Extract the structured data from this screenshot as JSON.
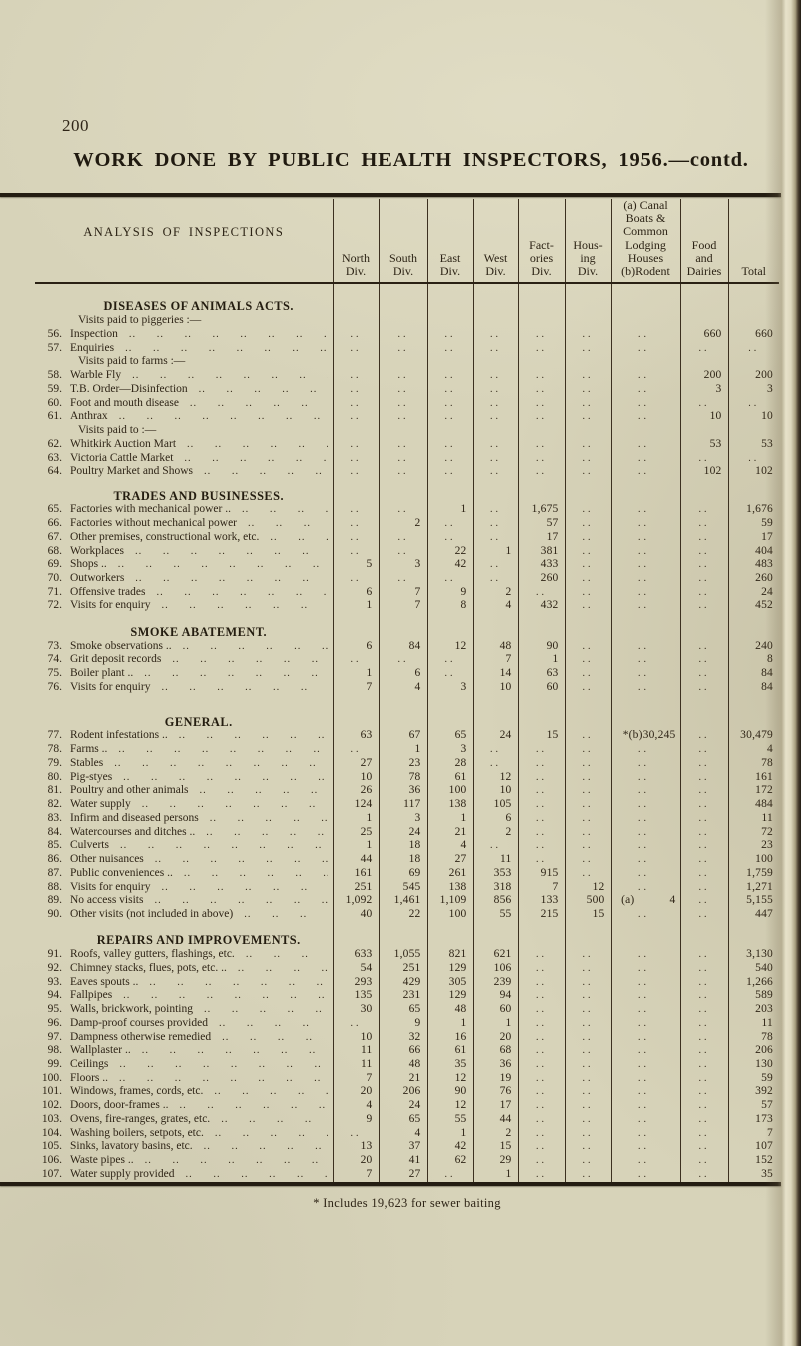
{
  "page": {
    "number": "200",
    "title": "WORK DONE BY PUBLIC HEALTH INSPECTORS, 1956.—contd.",
    "footnote": "* Includes 19,623 for sewer baiting"
  },
  "table": {
    "corner_label": "ANALYSIS OF INSPECTIONS",
    "columns": [
      "North\nDiv.",
      "South\nDiv.",
      "East\nDiv.",
      "West\nDiv.",
      "Fact-\nories\nDiv.",
      "Hous-\ning\nDiv.",
      "(a) Canal\nBoats &\nCommon\nLodging\nHouses\n(b)Rodent",
      "Food\nand\nDairies",
      "Total"
    ],
    "sections": [
      {
        "title": "DISEASES OF ANIMALS ACTS.",
        "rows": [
          {
            "type": "note",
            "label": "Visits paid to piggeries :—"
          },
          {
            "num": "56.",
            "label": "Inspection",
            "cells": [
              "..",
              "..",
              "..",
              "..",
              "..",
              "..",
              "..",
              "660",
              "660"
            ]
          },
          {
            "num": "57.",
            "label": "Enquiries",
            "cells": [
              "..",
              "..",
              "..",
              "..",
              "..",
              "..",
              "..",
              "..",
              ".."
            ]
          },
          {
            "type": "note",
            "label": "Visits paid to farms :—"
          },
          {
            "num": "58.",
            "label": "Warble Fly",
            "cells": [
              "..",
              "..",
              "..",
              "..",
              "..",
              "..",
              "..",
              "200",
              "200"
            ]
          },
          {
            "num": "59.",
            "label": "T.B. Order—Disinfection",
            "cells": [
              "..",
              "..",
              "..",
              "..",
              "..",
              "..",
              "..",
              "3",
              "3"
            ]
          },
          {
            "num": "60.",
            "label": "Foot and mouth disease",
            "cells": [
              "..",
              "..",
              "..",
              "..",
              "..",
              "..",
              "..",
              "..",
              ".."
            ]
          },
          {
            "num": "61.",
            "label": "Anthrax",
            "cells": [
              "..",
              "..",
              "..",
              "..",
              "..",
              "..",
              "..",
              "10",
              "10"
            ]
          },
          {
            "type": "note",
            "label": "Visits paid to :—"
          },
          {
            "num": "62.",
            "label": "Whitkirk Auction Mart",
            "cells": [
              "..",
              "..",
              "..",
              "..",
              "..",
              "..",
              "..",
              "53",
              "53"
            ]
          },
          {
            "num": "63.",
            "label": "Victoria Cattle Market",
            "cells": [
              "..",
              "..",
              "..",
              "..",
              "..",
              "..",
              "..",
              "..",
              ".."
            ]
          },
          {
            "num": "64.",
            "label": "Poultry Market and Shows",
            "cells": [
              "..",
              "..",
              "..",
              "..",
              "..",
              "..",
              "..",
              "102",
              "102"
            ]
          }
        ]
      },
      {
        "title": "TRADES AND BUSINESSES.",
        "rows": [
          {
            "num": "65.",
            "label": "Factories with mechanical power ..",
            "cells": [
              "..",
              "..",
              "1",
              "..",
              "1,675",
              "..",
              "..",
              "..",
              "1,676"
            ]
          },
          {
            "num": "66.",
            "label": "Factories without mechanical power",
            "cells": [
              "..",
              "2",
              "..",
              "..",
              "57",
              "..",
              "..",
              "..",
              "59"
            ]
          },
          {
            "num": "67.",
            "label": "Other premises, constructional work, etc.",
            "cells": [
              "..",
              "..",
              "..",
              "..",
              "17",
              "..",
              "..",
              "..",
              "17"
            ]
          },
          {
            "num": "68.",
            "label": "Workplaces",
            "cells": [
              "..",
              "..",
              "22",
              "1",
              "381",
              "..",
              "..",
              "..",
              "404"
            ]
          },
          {
            "num": "69.",
            "label": "Shops ..",
            "cells": [
              "5",
              "3",
              "42",
              "..",
              "433",
              "..",
              "..",
              "..",
              "483"
            ]
          },
          {
            "num": "70.",
            "label": "Outworkers",
            "cells": [
              "..",
              "..",
              "..",
              "..",
              "260",
              "..",
              "..",
              "..",
              "260"
            ]
          },
          {
            "num": "71.",
            "label": "Offensive trades",
            "cells": [
              "6",
              "7",
              "9",
              "2",
              "..",
              "..",
              "..",
              "..",
              "24"
            ]
          },
          {
            "num": "72.",
            "label": "Visits for enquiry",
            "cells": [
              "1",
              "7",
              "8",
              "4",
              "432",
              "..",
              "..",
              "..",
              "452"
            ]
          }
        ]
      },
      {
        "title": "SMOKE ABATEMENT.",
        "rows": [
          {
            "num": "73.",
            "label": "Smoke observations ..",
            "cells": [
              "6",
              "84",
              "12",
              "48",
              "90",
              "..",
              "..",
              "..",
              "240"
            ]
          },
          {
            "num": "74.",
            "label": "Grit deposit records",
            "cells": [
              "..",
              "..",
              "..",
              "7",
              "1",
              "..",
              "..",
              "..",
              "8"
            ]
          },
          {
            "num": "75.",
            "label": "Boiler plant ..",
            "cells": [
              "1",
              "6",
              "..",
              "14",
              "63",
              "..",
              "..",
              "..",
              "84"
            ]
          },
          {
            "num": "76.",
            "label": "Visits for enquiry",
            "cells": [
              "7",
              "4",
              "3",
              "10",
              "60",
              "..",
              "..",
              "..",
              "84"
            ]
          }
        ]
      },
      {
        "title": "GENERAL.",
        "rows": [
          {
            "num": "77.",
            "label": "Rodent infestations ..",
            "cells": [
              "63",
              "67",
              "65",
              "24",
              "15",
              "..",
              "*(b)30,245",
              "..",
              "30,479"
            ]
          },
          {
            "num": "78.",
            "label": "Farms ..",
            "cells": [
              "..",
              "1",
              "3",
              "..",
              "..",
              "..",
              "..",
              "..",
              "4"
            ]
          },
          {
            "num": "79.",
            "label": "Stables",
            "cells": [
              "27",
              "23",
              "28",
              "..",
              "..",
              "..",
              "..",
              "..",
              "78"
            ]
          },
          {
            "num": "80.",
            "label": "Pig-styes",
            "cells": [
              "10",
              "78",
              "61",
              "12",
              "..",
              "..",
              "..",
              "..",
              "161"
            ]
          },
          {
            "num": "81.",
            "label": "Poultry and other animals",
            "cells": [
              "26",
              "36",
              "100",
              "10",
              "..",
              "..",
              "..",
              "..",
              "172"
            ]
          },
          {
            "num": "82.",
            "label": "Water supply",
            "cells": [
              "124",
              "117",
              "138",
              "105",
              "..",
              "..",
              "..",
              "..",
              "484"
            ]
          },
          {
            "num": "83.",
            "label": "Infirm and diseased persons",
            "cells": [
              "1",
              "3",
              "1",
              "6",
              "..",
              "..",
              "..",
              "..",
              "11"
            ]
          },
          {
            "num": "84.",
            "label": "Watercourses and ditches ..",
            "cells": [
              "25",
              "24",
              "21",
              "2",
              "..",
              "..",
              "..",
              "..",
              "72"
            ]
          },
          {
            "num": "85.",
            "label": "Culverts",
            "cells": [
              "1",
              "18",
              "4",
              "..",
              "..",
              "..",
              "..",
              "..",
              "23"
            ]
          },
          {
            "num": "86.",
            "label": "Other nuisances",
            "cells": [
              "44",
              "18",
              "27",
              "11",
              "..",
              "..",
              "..",
              "..",
              "100"
            ]
          },
          {
            "num": "87.",
            "label": "Public conveniences ..",
            "cells": [
              "161",
              "69",
              "261",
              "353",
              "915",
              "..",
              "..",
              "..",
              "1,759"
            ]
          },
          {
            "num": "88.",
            "label": "Visits for enquiry",
            "cells": [
              "251",
              "545",
              "138",
              "318",
              "7",
              "12",
              "..",
              "..",
              "1,271"
            ]
          },
          {
            "num": "89.",
            "label": "No access visits",
            "cells": [
              "1,092",
              "1,461",
              "1,109",
              "856",
              "133",
              "500",
              "(a)   4",
              "..",
              "5,155"
            ]
          },
          {
            "num": "90.",
            "label": "Other visits (not included in above)",
            "cells": [
              "40",
              "22",
              "100",
              "55",
              "215",
              "15",
              "..",
              "..",
              "447"
            ]
          }
        ]
      },
      {
        "title": "REPAIRS AND IMPROVEMENTS.",
        "rows": [
          {
            "num": "91.",
            "label": "Roofs, valley gutters, flashings, etc.",
            "cells": [
              "633",
              "1,055",
              "821",
              "621",
              "..",
              "..",
              "..",
              "..",
              "3,130"
            ]
          },
          {
            "num": "92.",
            "label": "Chimney stacks, flues, pots, etc. ..",
            "cells": [
              "54",
              "251",
              "129",
              "106",
              "..",
              "..",
              "..",
              "..",
              "540"
            ]
          },
          {
            "num": "93.",
            "label": "Eaves spouts ..",
            "cells": [
              "293",
              "429",
              "305",
              "239",
              "..",
              "..",
              "..",
              "..",
              "1,266"
            ]
          },
          {
            "num": "94.",
            "label": "Fallpipes",
            "cells": [
              "135",
              "231",
              "129",
              "94",
              "..",
              "..",
              "..",
              "..",
              "589"
            ]
          },
          {
            "num": "95.",
            "label": "Walls, brickwork, pointing",
            "cells": [
              "30",
              "65",
              "48",
              "60",
              "..",
              "..",
              "..",
              "..",
              "203"
            ]
          },
          {
            "num": "96.",
            "label": "Damp-proof courses provided",
            "cells": [
              "..",
              "9",
              "1",
              "1",
              "..",
              "..",
              "..",
              "..",
              "11"
            ]
          },
          {
            "num": "97.",
            "label": "Dampness otherwise remedied",
            "cells": [
              "10",
              "32",
              "16",
              "20",
              "..",
              "..",
              "..",
              "..",
              "78"
            ]
          },
          {
            "num": "98.",
            "label": "Wallplaster ..",
            "cells": [
              "11",
              "66",
              "61",
              "68",
              "..",
              "..",
              "..",
              "..",
              "206"
            ]
          },
          {
            "num": "99.",
            "label": "Ceilings",
            "cells": [
              "11",
              "48",
              "35",
              "36",
              "..",
              "..",
              "..",
              "..",
              "130"
            ]
          },
          {
            "num": "100.",
            "label": "Floors ..",
            "cells": [
              "7",
              "21",
              "12",
              "19",
              "..",
              "..",
              "..",
              "..",
              "59"
            ]
          },
          {
            "num": "101.",
            "label": "Windows, frames, cords, etc.",
            "cells": [
              "20",
              "206",
              "90",
              "76",
              "..",
              "..",
              "..",
              "..",
              "392"
            ]
          },
          {
            "num": "102.",
            "label": "Doors, door-frames ..",
            "cells": [
              "4",
              "24",
              "12",
              "17",
              "..",
              "..",
              "..",
              "..",
              "57"
            ]
          },
          {
            "num": "103.",
            "label": "Ovens, fire-ranges, grates, etc.",
            "cells": [
              "9",
              "65",
              "55",
              "44",
              "..",
              "..",
              "..",
              "..",
              "173"
            ]
          },
          {
            "num": "104.",
            "label": "Washing boilers, setpots, etc.",
            "cells": [
              "..",
              "4",
              "1",
              "2",
              "..",
              "..",
              "..",
              "..",
              "7"
            ]
          },
          {
            "num": "105.",
            "label": "Sinks, lavatory basins, etc.",
            "cells": [
              "13",
              "37",
              "42",
              "15",
              "..",
              "..",
              "..",
              "..",
              "107"
            ]
          },
          {
            "num": "106.",
            "label": "Waste pipes ..",
            "cells": [
              "20",
              "41",
              "62",
              "29",
              "..",
              "..",
              "..",
              "..",
              "152"
            ]
          },
          {
            "num": "107.",
            "label": "Water supply provided",
            "cells": [
              "7",
              "27",
              "..",
              "1",
              "..",
              "..",
              "..",
              "..",
              "35"
            ]
          }
        ]
      }
    ]
  }
}
